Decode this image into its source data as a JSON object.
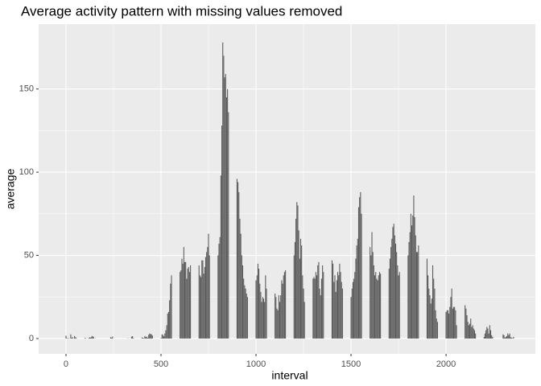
{
  "chart_data": {
    "type": "bar",
    "title": "Average activity pattern with missing values removed",
    "x_label": "interval",
    "y_label": "average",
    "x": [
      0,
      5,
      10,
      15,
      20,
      25,
      30,
      35,
      40,
      45,
      50,
      55,
      100,
      105,
      110,
      115,
      120,
      125,
      130,
      135,
      140,
      145,
      150,
      155,
      200,
      205,
      210,
      215,
      220,
      225,
      230,
      235,
      240,
      245,
      250,
      255,
      300,
      305,
      310,
      315,
      320,
      325,
      330,
      335,
      340,
      345,
      350,
      355,
      400,
      405,
      410,
      415,
      420,
      425,
      430,
      435,
      440,
      445,
      450,
      455,
      500,
      505,
      510,
      515,
      520,
      525,
      530,
      535,
      540,
      545,
      550,
      555,
      600,
      605,
      610,
      615,
      620,
      625,
      630,
      635,
      640,
      645,
      650,
      655,
      700,
      705,
      710,
      715,
      720,
      725,
      730,
      735,
      740,
      745,
      750,
      755,
      800,
      805,
      810,
      815,
      820,
      825,
      830,
      835,
      840,
      845,
      850,
      855,
      900,
      905,
      910,
      915,
      920,
      925,
      930,
      935,
      940,
      945,
      950,
      955,
      1000,
      1005,
      1010,
      1015,
      1020,
      1025,
      1030,
      1035,
      1040,
      1045,
      1050,
      1055,
      1100,
      1105,
      1110,
      1115,
      1120,
      1125,
      1130,
      1135,
      1140,
      1145,
      1150,
      1155,
      1200,
      1205,
      1210,
      1215,
      1220,
      1225,
      1230,
      1235,
      1240,
      1245,
      1250,
      1255,
      1300,
      1305,
      1310,
      1315,
      1320,
      1325,
      1330,
      1335,
      1340,
      1345,
      1350,
      1355,
      1400,
      1405,
      1410,
      1415,
      1420,
      1425,
      1430,
      1435,
      1440,
      1445,
      1450,
      1455,
      1500,
      1505,
      1510,
      1515,
      1520,
      1525,
      1530,
      1535,
      1540,
      1545,
      1550,
      1555,
      1600,
      1605,
      1610,
      1615,
      1620,
      1625,
      1630,
      1635,
      1640,
      1645,
      1650,
      1655,
      1700,
      1705,
      1710,
      1715,
      1720,
      1725,
      1730,
      1735,
      1740,
      1745,
      1750,
      1755,
      1800,
      1805,
      1810,
      1815,
      1820,
      1825,
      1830,
      1835,
      1840,
      1845,
      1850,
      1855,
      1900,
      1905,
      1910,
      1915,
      1920,
      1925,
      1930,
      1935,
      1940,
      1945,
      1950,
      1955,
      2000,
      2005,
      2010,
      2015,
      2020,
      2025,
      2030,
      2035,
      2040,
      2045,
      2050,
      2055,
      2100,
      2105,
      2110,
      2115,
      2120,
      2125,
      2130,
      2135,
      2140,
      2145,
      2150,
      2155,
      2200,
      2205,
      2210,
      2215,
      2220,
      2225,
      2230,
      2235,
      2240,
      2245,
      2250,
      2255,
      2300,
      2305,
      2310,
      2315,
      2320,
      2325,
      2330,
      2335,
      2340,
      2345,
      2350,
      2355
    ],
    "values": [
      1.7,
      0.3,
      0.1,
      0.2,
      0,
      2.5,
      0.5,
      0.8,
      0,
      1.5,
      0.8,
      0.3,
      0.4,
      0.1,
      0,
      0,
      0.3,
      0.7,
      0.5,
      1.2,
      1.5,
      0.9,
      0,
      0.1,
      0,
      0,
      0,
      0,
      0,
      0,
      0,
      0.8,
      0.5,
      1.2,
      0,
      0,
      0,
      0,
      0,
      0,
      0,
      0.2,
      0,
      0,
      0,
      1.1,
      1.4,
      0.3,
      0.6,
      0.4,
      0.2,
      1.5,
      0.9,
      1.1,
      0.4,
      2.2,
      3,
      2.7,
      2.5,
      1.8,
      0.3,
      2.5,
      2.2,
      1.3,
      3,
      5,
      8,
      15,
      16,
      23,
      33,
      38,
      40,
      41,
      48,
      45,
      55,
      46,
      46,
      36,
      42,
      43,
      40,
      44,
      44,
      38,
      37,
      47,
      47,
      39,
      43,
      49,
      52,
      55,
      63,
      50,
      50,
      57,
      61,
      98,
      128,
      178,
      170,
      157,
      159,
      145,
      150,
      136,
      96,
      94,
      88,
      72,
      63,
      50,
      44,
      36,
      32,
      30,
      27,
      25,
      35,
      38,
      45,
      42,
      33,
      28,
      22,
      25,
      24,
      22,
      38,
      30,
      27,
      25,
      18,
      17,
      26,
      22,
      26,
      35,
      33,
      38,
      40,
      41,
      50,
      58,
      72,
      82,
      80,
      65,
      48,
      60,
      56,
      38,
      30,
      22,
      36,
      37,
      36,
      40,
      38,
      44,
      46,
      30,
      26,
      36,
      44,
      40,
      47,
      45,
      34,
      38,
      28,
      35,
      40,
      38,
      45,
      40,
      34,
      30,
      25,
      30,
      34,
      36,
      40,
      48,
      56,
      60,
      79,
      85,
      88,
      75,
      55,
      50,
      64,
      52,
      44,
      38,
      40,
      36,
      35,
      38,
      40,
      39,
      42,
      48,
      55,
      60,
      67,
      69,
      62,
      57,
      52,
      44,
      38,
      40,
      50,
      58,
      64,
      75,
      68,
      74,
      86,
      73,
      62,
      52,
      52,
      56,
      48,
      38,
      30,
      26,
      21,
      24,
      44,
      36,
      30,
      17,
      12,
      10,
      16,
      17,
      17,
      15,
      19,
      25,
      30,
      18,
      19,
      19,
      17,
      8,
      20,
      18,
      14,
      10,
      8,
      9,
      12,
      7,
      8,
      6,
      5,
      3,
      1,
      3,
      5,
      7,
      6,
      3,
      8,
      5,
      2,
      1,
      0,
      0,
      2.5,
      2,
      0.5,
      1,
      1.5,
      3,
      2,
      3,
      0.8,
      0.5,
      0.2,
      1
    ],
    "color": "#595959",
    "panel_color": "#ebebeb",
    "grid": true,
    "xlim": [
      -144,
      2470
    ],
    "xticks": [
      0,
      500,
      1000,
      1500,
      2000
    ],
    "ylim": [
      -9.2,
      189
    ],
    "yticks": [
      0,
      50,
      100,
      150
    ]
  }
}
